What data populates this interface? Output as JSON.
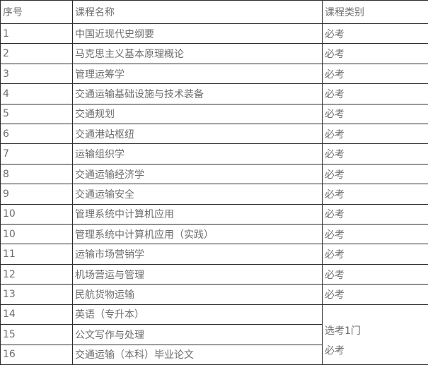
{
  "colors": {
    "border": "#2b2b2b",
    "text": "#6e6e6e",
    "background": "#ffffff"
  },
  "table": {
    "headers": [
      {
        "label": "序号"
      },
      {
        "label": "课程名称"
      },
      {
        "label": "课程类别"
      }
    ],
    "rows": [
      {
        "index": "1",
        "name": "中国近现代史纲要",
        "category": "必考"
      },
      {
        "index": "2",
        "name": "马克思主义基本原理概论",
        "category": "必考"
      },
      {
        "index": "3",
        "name": "管理运筹学",
        "category": "必考"
      },
      {
        "index": "4",
        "name": "交通运输基础设施与技术装备",
        "category": "必考"
      },
      {
        "index": "5",
        "name": "交通规划",
        "category": "必考"
      },
      {
        "index": "6",
        "name": "交通港站枢纽",
        "category": "必考"
      },
      {
        "index": "7",
        "name": "运输组织学",
        "category": "必考"
      },
      {
        "index": "8",
        "name": "交通运输经济学",
        "category": "必考"
      },
      {
        "index": "9",
        "name": "交通运输安全",
        "category": "必考"
      },
      {
        "index": "10",
        "name": "管理系统中计算机应用",
        "category": "必考"
      },
      {
        "index": "10",
        "name": "管理系统中计算机应用（实践）",
        "category": "必考"
      },
      {
        "index": "11",
        "name": "运输市场营销学",
        "category": "必考"
      },
      {
        "index": "12",
        "name": "机场营运与管理",
        "category": "必考"
      },
      {
        "index": "13",
        "name": "民航货物运输",
        "category": "必考"
      },
      {
        "index": "14",
        "name": "英语（专升本）",
        "category": null
      },
      {
        "index": "15",
        "name": "公文写作与处理",
        "category": null
      },
      {
        "index": "16",
        "name": "交通运输（本科）毕业论文",
        "category": null
      }
    ],
    "merged_category_cell": {
      "start_row_index": 14,
      "rowspan": 3,
      "lines": [
        "选考1门",
        "必考"
      ]
    }
  }
}
